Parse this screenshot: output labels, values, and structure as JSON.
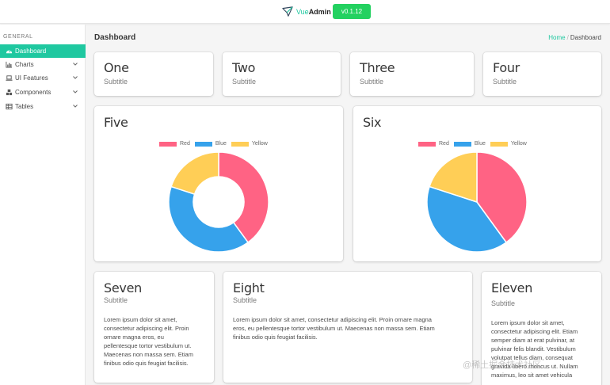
{
  "header": {
    "brand_vue": "Vue",
    "brand_admin": "Admin",
    "version": "v0.1.12"
  },
  "sidebar": {
    "section_label": "GENERAL",
    "items": [
      {
        "label": "Dashboard",
        "icon": "dashboard-icon",
        "active": true
      },
      {
        "label": "Charts",
        "icon": "bar-chart-icon"
      },
      {
        "label": "UI Features",
        "icon": "laptop-icon"
      },
      {
        "label": "Components",
        "icon": "cubes-icon"
      },
      {
        "label": "Tables",
        "icon": "table-icon"
      }
    ]
  },
  "page": {
    "title": "Dashboard",
    "breadcrumb_home": "Home",
    "breadcrumb_sep": "/",
    "breadcrumb_current": "Dashboard"
  },
  "cards": {
    "one": {
      "title": "One",
      "subtitle": "Subtitle"
    },
    "two": {
      "title": "Two",
      "subtitle": "Subtitle"
    },
    "three": {
      "title": "Three",
      "subtitle": "Subtitle"
    },
    "four": {
      "title": "Four",
      "subtitle": "Subtitle"
    },
    "five": {
      "title": "Five"
    },
    "six": {
      "title": "Six"
    },
    "seven": {
      "title": "Seven",
      "subtitle": "Subtitle",
      "lines": [
        "Lorem ipsum dolor sit amet,",
        "consectetur adipiscing elit. Proin",
        "ornare magna eros, eu",
        "pellentesque tortor vestibulum ut.",
        "Maecenas non massa sem. Etiam",
        "finibus odio quis feugiat facilisis."
      ]
    },
    "eight": {
      "title": "Eight",
      "subtitle": "Subtitle",
      "lines": [
        "Lorem ipsum dolor sit amet, consectetur adipiscing elit. Proin ornare magna",
        "eros, eu pellentesque tortor vestibulum ut. Maecenas non massa sem. Etiam",
        "finibus odio quis feugiat facilisis."
      ]
    },
    "eleven": {
      "title": "Eleven",
      "subtitle": "Subtitle",
      "lines": [
        "Lorem ipsum dolor sit amet,",
        "consectetur adipiscing elit. Etiam",
        "semper diam at erat pulvinar, at",
        "pulvinar felis blandit. Vestibulum",
        "volutpat tellus diam, consequat",
        "gravida libero rhoncus ut. Nullam",
        "maximus, leo sit amet vehicula"
      ]
    }
  },
  "watermark": "@稀土掘金技术社区",
  "colors": {
    "red": "#ff6384",
    "blue": "#36a2eb",
    "yellow": "#ffce56",
    "accent": "#1fc8a0"
  },
  "chart_data": [
    {
      "type": "pie",
      "variant": "doughnut",
      "title": "Five",
      "categories": [
        "Red",
        "Blue",
        "Yellow"
      ],
      "values": [
        300,
        300,
        150
      ],
      "colors": [
        "#ff6384",
        "#36a2eb",
        "#ffce56"
      ],
      "legend": "top"
    },
    {
      "type": "pie",
      "title": "Six",
      "categories": [
        "Red",
        "Blue",
        "Yellow"
      ],
      "values": [
        300,
        300,
        150
      ],
      "colors": [
        "#ff6384",
        "#36a2eb",
        "#ffce56"
      ],
      "legend": "top"
    }
  ]
}
